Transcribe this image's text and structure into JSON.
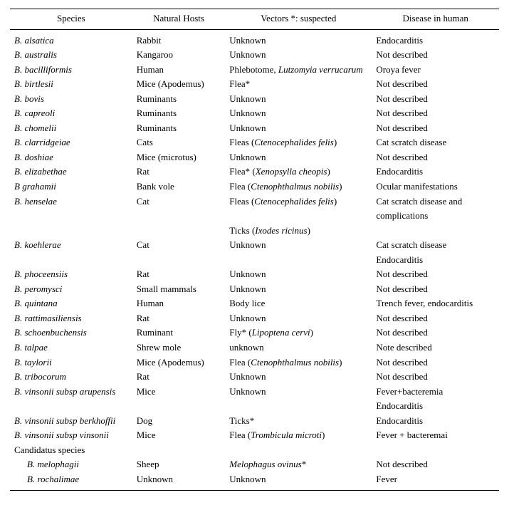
{
  "table": {
    "headers": {
      "species": "Species",
      "hosts": "Natural Hosts",
      "vectors": "Vectors *: suspected",
      "disease": "Disease in human"
    },
    "rows": [
      {
        "species": [
          {
            "t": "B. alsatica",
            "i": true
          }
        ],
        "host": [
          {
            "t": "Rabbit"
          }
        ],
        "vector": [
          {
            "t": "Unknown"
          }
        ],
        "disease": "Endocarditis"
      },
      {
        "species": [
          {
            "t": "B. australis",
            "i": true
          }
        ],
        "host": [
          {
            "t": "Kangaroo"
          }
        ],
        "vector": [
          {
            "t": "Unknown"
          }
        ],
        "disease": "Not described"
      },
      {
        "species": [
          {
            "t": "B. bacilliformis",
            "i": true
          }
        ],
        "host": [
          {
            "t": "Human"
          }
        ],
        "vector": [
          {
            "t": "Phlebotome, "
          },
          {
            "t": "Lutzomyia verrucarum",
            "i": true
          }
        ],
        "disease": "Oroya fever"
      },
      {
        "species": [
          {
            "t": "B. birtlesii",
            "i": true
          }
        ],
        "host": [
          {
            "t": "Mice ("
          },
          {
            "t": "Apodemus",
            "i": true
          },
          {
            "t": ")"
          }
        ],
        "vector": [
          {
            "t": "Flea*"
          }
        ],
        "disease": "Not described"
      },
      {
        "species": [
          {
            "t": "B. bovis",
            "i": true
          }
        ],
        "host": [
          {
            "t": "Ruminants"
          }
        ],
        "vector": [
          {
            "t": "Unknown"
          }
        ],
        "disease": "Not described"
      },
      {
        "species": [
          {
            "t": "B. capreoli",
            "i": true
          }
        ],
        "host": [
          {
            "t": "Ruminants"
          }
        ],
        "vector": [
          {
            "t": "Unknown"
          }
        ],
        "disease": "Not described"
      },
      {
        "species": [
          {
            "t": "B. chomelii",
            "i": true
          }
        ],
        "host": [
          {
            "t": "Ruminants"
          }
        ],
        "vector": [
          {
            "t": "Unknown"
          }
        ],
        "disease": "Not described"
      },
      {
        "species": [
          {
            "t": "B. clarridgeiae",
            "i": true
          }
        ],
        "host": [
          {
            "t": "Cats"
          }
        ],
        "vector": [
          {
            "t": "Fleas ("
          },
          {
            "t": "Ctenocephalides felis",
            "i": true
          },
          {
            "t": ")"
          }
        ],
        "disease": "Cat scratch disease"
      },
      {
        "species": [
          {
            "t": "B. doshiae",
            "i": true
          }
        ],
        "host": [
          {
            "t": "Mice (microtus)"
          }
        ],
        "vector": [
          {
            "t": "Unknown"
          }
        ],
        "disease": "Not described"
      },
      {
        "species": [
          {
            "t": "B. elizabethae",
            "i": true
          }
        ],
        "host": [
          {
            "t": "Rat"
          }
        ],
        "vector": [
          {
            "t": "Flea* ("
          },
          {
            "t": "Xenopsylla cheopis",
            "i": true
          },
          {
            "t": ")"
          }
        ],
        "disease": "Endocarditis"
      },
      {
        "species": [
          {
            "t": "B grahamii",
            "i": true
          }
        ],
        "host": [
          {
            "t": "Bank vole"
          }
        ],
        "vector": [
          {
            "t": "Flea ("
          },
          {
            "t": "Ctenophthalmus nobilis",
            "i": true
          },
          {
            "t": ")"
          }
        ],
        "disease": "Ocular manifestations"
      },
      {
        "species": [
          {
            "t": "B. henselae",
            "i": true
          }
        ],
        "host": [
          {
            "t": "Cat"
          }
        ],
        "vector": [
          {
            "t": "Fleas ("
          },
          {
            "t": "Ctenocephalides felis",
            "i": true
          },
          {
            "t": ")"
          }
        ],
        "disease": "Cat scratch disease and"
      },
      {
        "species": [],
        "host": [],
        "vector": [],
        "disease": "complications"
      },
      {
        "species": [],
        "host": [],
        "vector": [
          {
            "t": "Ticks ("
          },
          {
            "t": "Ixodes ricinus",
            "i": true
          },
          {
            "t": ")"
          }
        ],
        "disease": ""
      },
      {
        "species": [
          {
            "t": "B. koehlerae",
            "i": true
          }
        ],
        "host": [
          {
            "t": "Cat"
          }
        ],
        "vector": [
          {
            "t": "Unknown"
          }
        ],
        "disease": "Cat scratch disease"
      },
      {
        "species": [],
        "host": [],
        "vector": [],
        "disease": "Endocarditis"
      },
      {
        "species": [
          {
            "t": "B. phoceensiis",
            "i": true
          }
        ],
        "host": [
          {
            "t": "Rat"
          }
        ],
        "vector": [
          {
            "t": "Unknown"
          }
        ],
        "disease": "Not described"
      },
      {
        "species": [
          {
            "t": "B. peromysci",
            "i": true
          }
        ],
        "host": [
          {
            "t": "Small mammals"
          }
        ],
        "vector": [
          {
            "t": "Unknown"
          }
        ],
        "disease": "Not described"
      },
      {
        "species": [
          {
            "t": "B. quintana",
            "i": true
          }
        ],
        "host": [
          {
            "t": "Human"
          }
        ],
        "vector": [
          {
            "t": "Body lice"
          }
        ],
        "disease": "Trench fever, endocarditis"
      },
      {
        "species": [
          {
            "t": "B. rattimasiliensis",
            "i": true
          }
        ],
        "host": [
          {
            "t": "Rat"
          }
        ],
        "vector": [
          {
            "t": "Unknown"
          }
        ],
        "disease": "Not described"
      },
      {
        "species": [
          {
            "t": "B. schoenbuchensis",
            "i": true
          }
        ],
        "host": [
          {
            "t": "Ruminant"
          }
        ],
        "vector": [
          {
            "t": "Fly* ("
          },
          {
            "t": "Lipoptena cervi",
            "i": true
          },
          {
            "t": ")"
          }
        ],
        "disease": "Not described"
      },
      {
        "species": [
          {
            "t": "B. talpae",
            "i": true
          }
        ],
        "host": [
          {
            "t": "Shrew mole"
          }
        ],
        "vector": [
          {
            "t": "unknown"
          }
        ],
        "disease": "Note described"
      },
      {
        "species": [
          {
            "t": "B. taylorii",
            "i": true
          }
        ],
        "host": [
          {
            "t": "Mice ("
          },
          {
            "t": "Apodemus",
            "i": true
          },
          {
            "t": ")"
          }
        ],
        "vector": [
          {
            "t": "Flea ("
          },
          {
            "t": "Ctenophthalmus nobilis",
            "i": true
          },
          {
            "t": ")"
          }
        ],
        "disease": "Not described"
      },
      {
        "species": [
          {
            "t": "B. tribocorum",
            "i": true
          }
        ],
        "host": [
          {
            "t": "Rat"
          }
        ],
        "vector": [
          {
            "t": "Unknown"
          }
        ],
        "disease": "Not described"
      },
      {
        "species": [
          {
            "t": "B. vinsonii subsp arupensis",
            "i": true
          }
        ],
        "host": [
          {
            "t": "Mice"
          }
        ],
        "vector": [
          {
            "t": "Unknown"
          }
        ],
        "disease": "Fever+bacteremia"
      },
      {
        "species": [],
        "host": [],
        "vector": [],
        "disease": "Endocarditis"
      },
      {
        "species": [
          {
            "t": "B. vinsonii subsp berkhoffii",
            "i": true
          }
        ],
        "host": [
          {
            "t": "Dog"
          }
        ],
        "vector": [
          {
            "t": "Ticks*"
          }
        ],
        "disease": "Endocarditis"
      },
      {
        "species": [
          {
            "t": "B. vinsonii subsp vinsonii",
            "i": true
          }
        ],
        "host": [
          {
            "t": "Mice"
          }
        ],
        "vector": [
          {
            "t": "Flea ("
          },
          {
            "t": "Trombicula microti",
            "i": true
          },
          {
            "t": ")"
          }
        ],
        "disease": "Fever + bacteremai"
      },
      {
        "species": [
          {
            "t": "Candidatus species"
          }
        ],
        "host": [],
        "vector": [],
        "disease": ""
      },
      {
        "species": [
          {
            "t": "B. melophagii",
            "i": true
          }
        ],
        "indent": 1,
        "host": [
          {
            "t": "Sheep"
          }
        ],
        "vector": [
          {
            "t": "Melophagus ovinus",
            "i": true
          },
          {
            "t": "*"
          }
        ],
        "disease": "Not described"
      },
      {
        "species": [
          {
            "t": "B. rochalimae",
            "i": true
          }
        ],
        "indent": 1,
        "host": [
          {
            "t": "Unknown"
          }
        ],
        "vector": [
          {
            "t": "Unknown"
          }
        ],
        "disease": "Fever"
      }
    ],
    "style": {
      "font_family": "Times New Roman",
      "font_size_pt": 10,
      "header_border_top": "#000000",
      "header_border_bottom": "#000000",
      "body_border_bottom": "#000000",
      "background": "#ffffff",
      "text_color": "#000000"
    }
  }
}
